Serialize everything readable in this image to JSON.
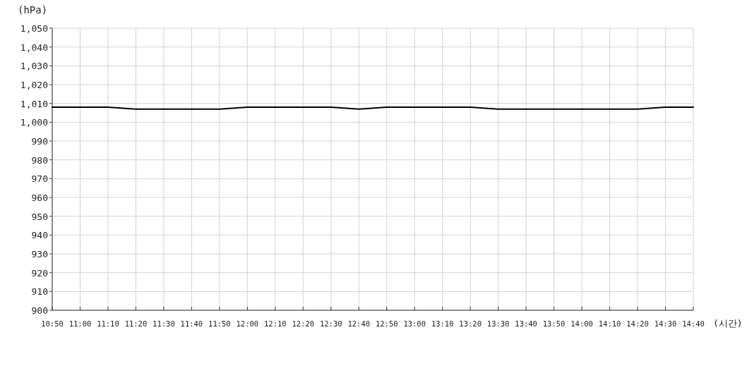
{
  "chart_data": {
    "type": "line",
    "xlabel": "(시간)",
    "ylabel": "(hPa)",
    "categories": [
      "10:50",
      "11:00",
      "11:10",
      "11:20",
      "11:30",
      "11:40",
      "11:50",
      "12:00",
      "12:10",
      "12:20",
      "12:30",
      "12:40",
      "12:50",
      "13:00",
      "13:10",
      "13:20",
      "13:30",
      "13:40",
      "13:50",
      "14:00",
      "14:10",
      "14:20",
      "14:30",
      "14:40"
    ],
    "series": [
      {
        "color": "#000000",
        "values": [
          1008,
          1008,
          1008,
          1007,
          1007,
          1007,
          1007,
          1008,
          1008,
          1008,
          1008,
          1007,
          1008,
          1008,
          1008,
          1008,
          1007,
          1007,
          1007,
          1007,
          1007,
          1007,
          1008,
          1008
        ]
      }
    ],
    "ylim": [
      900,
      1050
    ],
    "yticks": [
      900,
      910,
      920,
      930,
      940,
      950,
      960,
      970,
      980,
      990,
      {
        "value": 1000,
        "label": "1,000"
      },
      {
        "value": 1010,
        "label": "1,010"
      },
      {
        "value": 1020,
        "label": "1,020"
      },
      {
        "value": 1030,
        "label": "1,030"
      },
      {
        "value": 1040,
        "label": "1,040"
      },
      {
        "value": 1050,
        "label": "1,050"
      }
    ],
    "grid": true,
    "marker": "none",
    "line_style": "solid"
  }
}
